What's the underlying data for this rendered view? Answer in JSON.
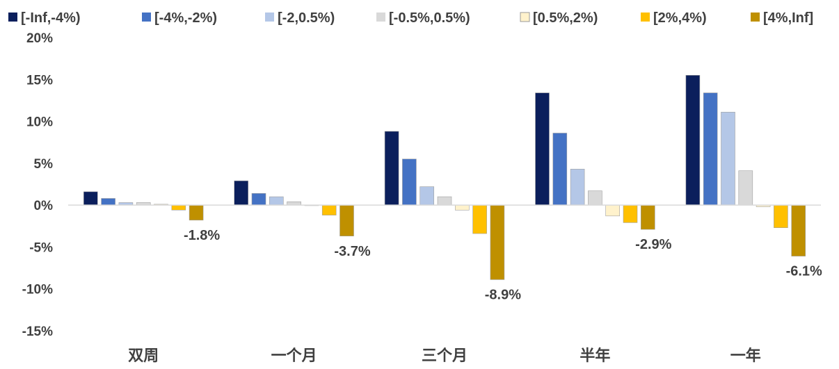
{
  "chart_data": {
    "type": "bar",
    "title": "",
    "xlabel": "",
    "ylabel": "",
    "categories": [
      "双周",
      "一个月",
      "三个月",
      "半年",
      "一年"
    ],
    "ylim": [
      -15,
      20
    ],
    "yticks": [
      -15,
      -10,
      -5,
      0,
      5,
      10,
      15,
      20
    ],
    "ytick_format": "percent",
    "legend_position": "top",
    "grid": false,
    "series": [
      {
        "name": "[-Inf,-4%)",
        "color": "#0b1f5c",
        "values": [
          1.6,
          2.9,
          8.8,
          13.4,
          15.5
        ]
      },
      {
        "name": "[-4%,-2%)",
        "color": "#4472c4",
        "values": [
          0.8,
          1.4,
          5.5,
          8.6,
          13.4
        ]
      },
      {
        "name": "[-2,0.5%)",
        "color": "#b4c7e7",
        "values": [
          0.3,
          1.0,
          2.2,
          4.3,
          11.1
        ]
      },
      {
        "name": "[-0.5%,0.5%)",
        "color": "#d9d9d9",
        "values": [
          0.3,
          0.4,
          1.0,
          1.7,
          4.1
        ]
      },
      {
        "name": "[0.5%,2%)",
        "color": "#fff2cc",
        "values": [
          0.1,
          0.0,
          -0.6,
          -1.3,
          -0.2
        ]
      },
      {
        "name": "[2%,4%)",
        "color": "#ffc000",
        "values": [
          -0.6,
          -1.2,
          -3.4,
          -2.1,
          -2.7
        ]
      },
      {
        "name": "[4%,Inf]",
        "color": "#bf9000",
        "values": [
          -1.8,
          -3.7,
          -8.9,
          -2.9,
          -6.1
        ]
      }
    ],
    "data_labels": [
      {
        "series": 6,
        "category": 0,
        "text": "-1.8%"
      },
      {
        "series": 6,
        "category": 1,
        "text": "-3.7%"
      },
      {
        "series": 6,
        "category": 2,
        "text": "-8.9%"
      },
      {
        "series": 6,
        "category": 3,
        "text": "-2.9%"
      },
      {
        "series": 6,
        "category": 4,
        "text": "-6.1%"
      }
    ]
  }
}
